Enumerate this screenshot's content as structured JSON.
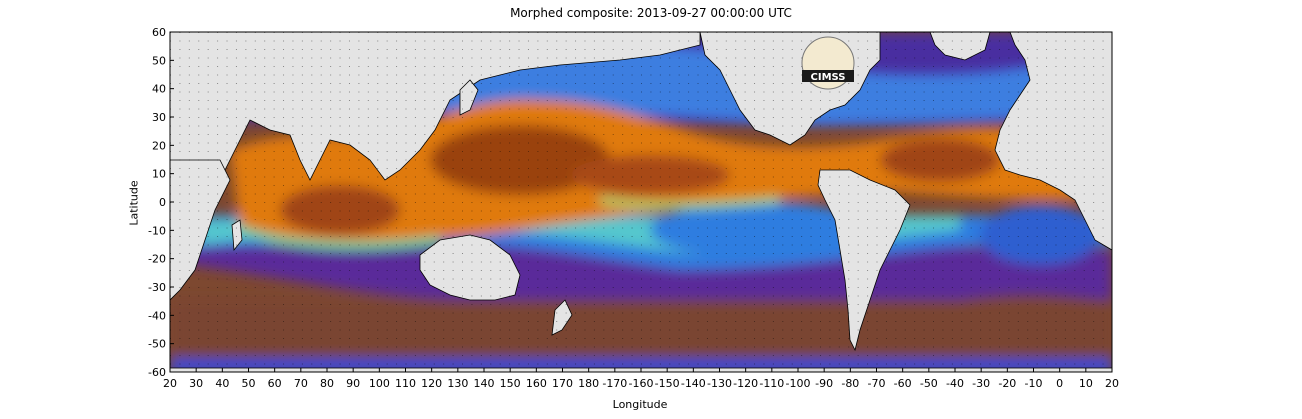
{
  "title": "Morphed composite: 2013-09-27 00:00:00 UTC",
  "axes": {
    "xlabel": "Longitude",
    "ylabel": "Latitude",
    "x_ticks": [
      "20",
      "30",
      "40",
      "50",
      "60",
      "70",
      "80",
      "90",
      "100",
      "110",
      "120",
      "130",
      "140",
      "150",
      "160",
      "170",
      "180",
      "-170",
      "-160",
      "-150",
      "-140",
      "-130",
      "-120",
      "-110",
      "-100",
      "-90",
      "-80",
      "-70",
      "-60",
      "-50",
      "-40",
      "-30",
      "-20",
      "-10",
      "0",
      "10",
      "20"
    ],
    "y_ticks": [
      "60",
      "50",
      "40",
      "30",
      "20",
      "10",
      "0",
      "-10",
      "-20",
      "-30",
      "-40",
      "-50",
      "-60"
    ]
  },
  "logo_text": "CIMSS",
  "colors": {
    "land": "#e4e4e4",
    "moist": "#e07a10",
    "very_moist": "#8a3a10",
    "mid": "#2e8fe8",
    "dry": "#6a2aa0",
    "very_dry": "#9a5a3a",
    "transition": "#5ed8d0"
  }
}
